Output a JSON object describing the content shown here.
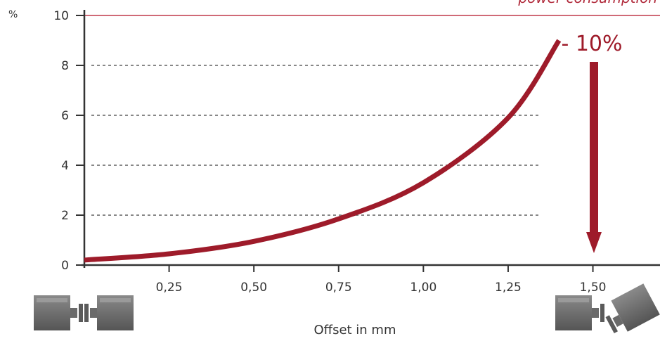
{
  "chart_data": {
    "type": "line",
    "title": "",
    "xlabel": "Offset in mm",
    "ylabel": "%",
    "xlim": [
      0,
      1.7
    ],
    "ylim": [
      0,
      10
    ],
    "x_ticks": [
      "0,25",
      "0,50",
      "0,75",
      "1,00",
      "1,25",
      "1,50"
    ],
    "x_tick_values": [
      0.25,
      0.5,
      0.75,
      1.0,
      1.25,
      1.5
    ],
    "y_ticks": [
      0,
      2,
      4,
      6,
      8,
      10
    ],
    "grid": "dotted horizontal",
    "series": [
      {
        "color": "#9e1b2a",
        "x": [
          0.0,
          0.25,
          0.5,
          0.75,
          1.0,
          1.25,
          1.4
        ],
        "y": [
          0.2,
          0.45,
          0.95,
          1.85,
          3.3,
          5.9,
          9.0
        ]
      }
    ],
    "reference_line": {
      "y": 10,
      "label": "power consumption",
      "color": "#c0394a"
    },
    "annotation": {
      "text": "- 10%",
      "color": "#9e1b2a"
    }
  },
  "icons": {
    "left": "aligned-motor-coupling-icon",
    "right": "misaligned-motor-coupling-icon"
  }
}
